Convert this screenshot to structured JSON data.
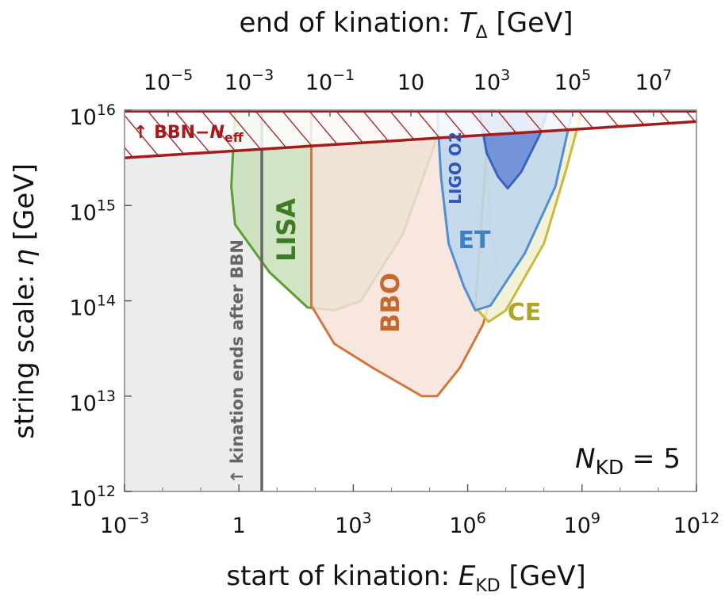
{
  "chart_data": {
    "type": "area",
    "top_axis": {
      "label_prefix": "end of kination: ",
      "label_symbol": "T",
      "label_subscript": "Δ",
      "label_unit": " [GeV]",
      "ticks": [
        {
          "base": "10",
          "exp": "−5"
        },
        {
          "base": "10",
          "exp": "−3"
        },
        {
          "base": "10",
          "exp": "−1"
        },
        {
          "base": "10",
          "exp": ""
        },
        {
          "base": "10",
          "exp": "3"
        },
        {
          "base": "10",
          "exp": "5"
        },
        {
          "base": "10",
          "exp": "7"
        }
      ]
    },
    "x_axis": {
      "label_prefix": "start of kination: ",
      "label_symbol": "E",
      "label_subscript": "KD",
      "label_unit": " [GeV]",
      "scale": "log10",
      "range_log10": [
        -3,
        12
      ],
      "ticks": [
        {
          "base": "10",
          "exp": "−3",
          "log": -3
        },
        {
          "base": "1",
          "exp": "",
          "log": 0
        },
        {
          "base": "10",
          "exp": "3",
          "log": 3
        },
        {
          "base": "10",
          "exp": "6",
          "log": 6
        },
        {
          "base": "10",
          "exp": "9",
          "log": 9
        },
        {
          "base": "10",
          "exp": "12",
          "log": 12
        }
      ]
    },
    "y_axis": {
      "label_prefix": "string scale: ",
      "label_symbol": "η",
      "label_unit": " [GeV]",
      "scale": "log10",
      "range_log10": [
        12,
        16
      ],
      "ticks": [
        {
          "base": "10",
          "exp": "12",
          "log": 12
        },
        {
          "base": "10",
          "exp": "13",
          "log": 13
        },
        {
          "base": "10",
          "exp": "14",
          "log": 14
        },
        {
          "base": "10",
          "exp": "15",
          "log": 15
        },
        {
          "base": "10",
          "exp": "16",
          "log": 16
        }
      ]
    },
    "annotation": {
      "symbol": "N",
      "subscript": "KD",
      "text": " = 5"
    },
    "bbn_constraint": {
      "label_prefix": "↑ BBN−",
      "label_symbol": "N",
      "label_subscript": "eff",
      "color": "#a51a1a",
      "boundary": [
        [
          -3,
          15.5
        ],
        [
          12,
          15.88
        ]
      ]
    },
    "bbn_kination_line": {
      "label": "↑ kination ends after BBN",
      "x_log10": 0.6,
      "color": "#666666",
      "shade_color": "#ececec"
    },
    "regions": [
      {
        "name": "LISA",
        "fill": "#c9e0bb",
        "stroke": "#5c9e34",
        "label_color": "#3f7a24",
        "points": [
          [
            -0.1,
            16
          ],
          [
            -0.2,
            15.2
          ],
          [
            -0.1,
            14.8
          ],
          [
            0.8,
            14.3
          ],
          [
            1.8,
            13.93
          ],
          [
            2.5,
            13.9
          ],
          [
            3.2,
            14.0
          ],
          [
            4.3,
            14.7
          ],
          [
            5.1,
            15.6
          ],
          [
            5.4,
            16
          ]
        ]
      },
      {
        "name": "BBO",
        "fill": "#f7e3d8",
        "stroke": "#d2773c",
        "label_color": "#c46a2f",
        "points": [
          [
            1.9,
            16
          ],
          [
            1.9,
            13.95
          ],
          [
            2.5,
            13.55
          ],
          [
            3.5,
            13.3
          ],
          [
            4.8,
            13.0
          ],
          [
            5.2,
            13.0
          ],
          [
            5.8,
            13.3
          ],
          [
            6.4,
            13.75
          ],
          [
            6.8,
            14.3
          ],
          [
            6.6,
            14.8
          ],
          [
            6.5,
            15.5
          ],
          [
            6.8,
            16
          ]
        ]
      },
      {
        "name": "CE",
        "fill": "#f2f0cf",
        "stroke": "#c8bb3a",
        "label_color": "#b1a529",
        "points": [
          [
            6.2,
            13.93
          ],
          [
            6.55,
            13.78
          ],
          [
            7.0,
            13.9
          ],
          [
            8.0,
            14.6
          ],
          [
            8.6,
            15.4
          ],
          [
            9.0,
            16
          ],
          [
            7.6,
            16
          ],
          [
            6.5,
            15.6
          ]
        ]
      },
      {
        "name": "ET",
        "fill": "#bcd6ee",
        "stroke": "#4f8fd2",
        "label_color": "#3f7fc3",
        "points": [
          [
            5.2,
            16
          ],
          [
            5.3,
            15.3
          ],
          [
            5.5,
            14.6
          ],
          [
            5.9,
            14.15
          ],
          [
            6.2,
            13.9
          ],
          [
            6.6,
            13.95
          ],
          [
            7.5,
            14.5
          ],
          [
            8.3,
            15.2
          ],
          [
            8.75,
            16
          ]
        ]
      },
      {
        "name": "LIGO O2",
        "fill": "#6487d6",
        "stroke": "#3a62c2",
        "label_color": "#2f55b8",
        "points": [
          [
            6.3,
            16
          ],
          [
            6.5,
            15.55
          ],
          [
            6.8,
            15.3
          ],
          [
            7.05,
            15.18
          ],
          [
            7.4,
            15.35
          ],
          [
            7.9,
            15.75
          ],
          [
            8.1,
            16
          ]
        ]
      }
    ]
  }
}
